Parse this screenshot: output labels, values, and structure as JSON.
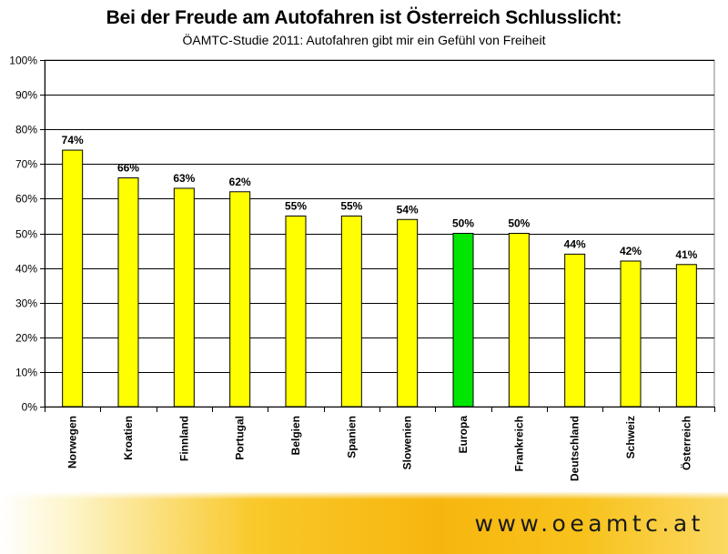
{
  "header": {
    "title": "Bei der Freude am Autofahren ist Österreich Schlusslicht:",
    "subtitle": "ÖAMTC-Studie 2011: Autofahren gibt mir ein Gefühl von Freiheit"
  },
  "footer": {
    "url": "www.oeamtc.at"
  },
  "colors": {
    "default_bar": "#ffff00",
    "highlight_bar": "#00e600",
    "bar_stroke": "#000000",
    "grid": "#000000"
  },
  "chart_data": {
    "type": "bar",
    "categories": [
      "Norwegen",
      "Kroatien",
      "Finnland",
      "Portugal",
      "Belgien",
      "Spanien",
      "Slowenien",
      "Europa",
      "Frankreich",
      "Deutschland",
      "Schweiz",
      "Österreich"
    ],
    "values": [
      74,
      66,
      63,
      62,
      55,
      55,
      54,
      50,
      50,
      44,
      42,
      41
    ],
    "value_labels": [
      "74%",
      "66%",
      "63%",
      "62%",
      "55%",
      "55%",
      "54%",
      "50%",
      "50%",
      "44%",
      "42%",
      "41%"
    ],
    "highlight_category": "Europa",
    "ylim": [
      0,
      100
    ],
    "yticks": [
      0,
      10,
      20,
      30,
      40,
      50,
      60,
      70,
      80,
      90,
      100
    ],
    "ytick_labels": [
      "0%",
      "10%",
      "20%",
      "30%",
      "40%",
      "50%",
      "60%",
      "70%",
      "80%",
      "90%",
      "100%"
    ],
    "grid": true,
    "legend": false
  }
}
